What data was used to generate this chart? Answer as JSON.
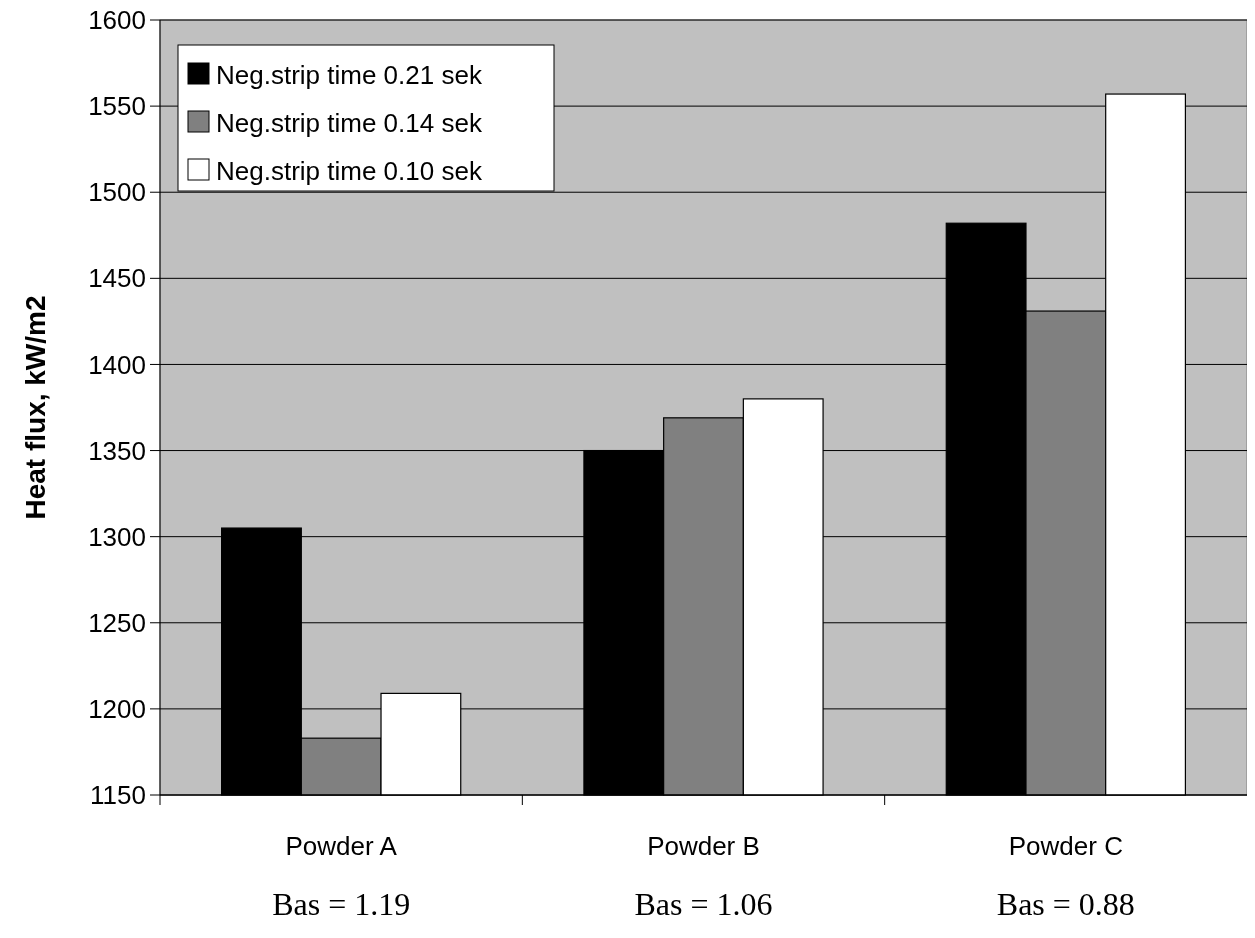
{
  "chart_data": {
    "type": "bar",
    "ylabel": "Heat flux, kW/m2",
    "categories": [
      "Powder A",
      "Powder B",
      "Powder C"
    ],
    "series": [
      {
        "name": "Neg.strip time 0.21 sek",
        "color": "#000000",
        "values": [
          1305,
          1350,
          1482
        ]
      },
      {
        "name": "Neg.strip time 0.14 sek",
        "color": "#808080",
        "values": [
          1183,
          1369,
          1431
        ]
      },
      {
        "name": "Neg.strip time 0.10 sek",
        "color": "#ffffff",
        "values": [
          1209,
          1380,
          1557
        ]
      }
    ],
    "ylim": [
      1150,
      1600
    ],
    "yticks": [
      1150,
      1200,
      1250,
      1300,
      1350,
      1400,
      1450,
      1500,
      1550,
      1600
    ],
    "grid": "y",
    "legend": "top left",
    "annotations": [
      "Bas = 1.19",
      "Bas = 1.06",
      "Bas = 0.88"
    ]
  }
}
